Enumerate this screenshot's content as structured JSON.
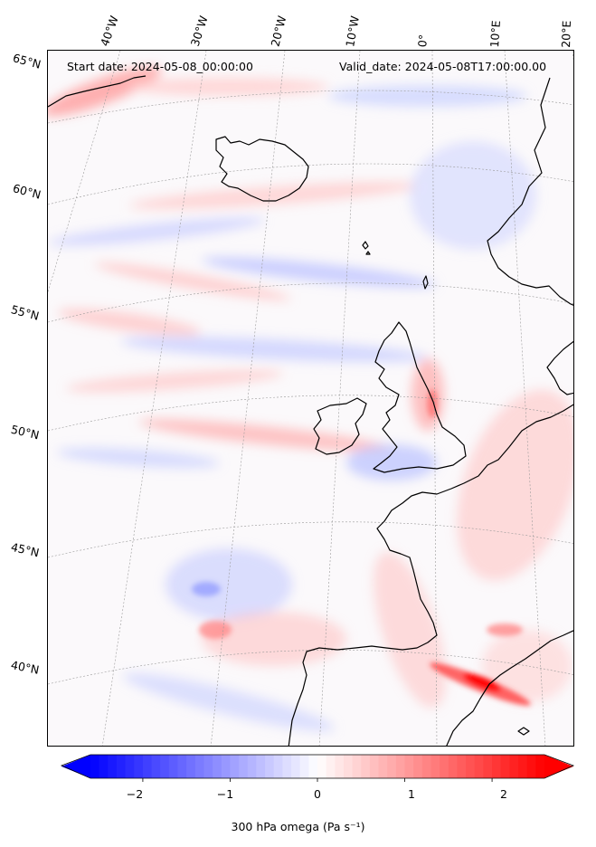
{
  "header": {
    "start_date": "Start date: 2024-05-08_00:00:00",
    "valid_date": "Valid_date: 2024-05-08T17:00:00.00"
  },
  "lon_labels": [
    "40°W",
    "30°W",
    "20°W",
    "10°W",
    "0°",
    "10°E",
    "20°E"
  ],
  "lat_labels": [
    "65°N",
    "60°N",
    "55°N",
    "50°N",
    "45°N",
    "40°N"
  ],
  "colorbar": {
    "min": -2.6,
    "max": 2.6,
    "ticks": [
      "−2",
      "−1",
      "0",
      "1",
      "2"
    ],
    "tick_values": [
      -2,
      -1,
      0,
      1,
      2
    ],
    "label": "300 hPa omega (Pa s⁻¹)",
    "low_color": "#0000ff",
    "mid_color": "#ffffff",
    "high_color": "#ff0000",
    "extend": "both"
  },
  "colors": {
    "coastline": "#000000",
    "gridline": "#9a9a9a",
    "background": "#fbf9fb"
  }
}
